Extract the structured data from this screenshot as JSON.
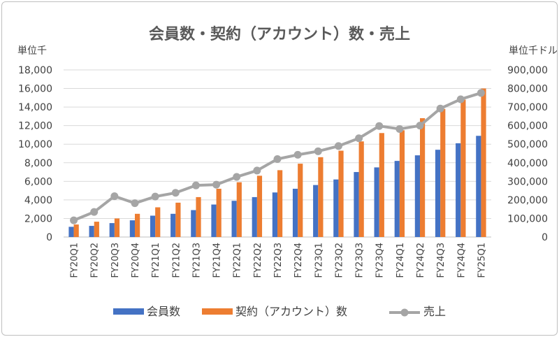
{
  "chart_data": {
    "type": "bar",
    "title": "会員数・契約（アカウント）数・売上",
    "y_left_unit": "単位千",
    "y_right_unit": "単位千ドル",
    "ylim_left": [
      0,
      18000
    ],
    "ylim_right": [
      0,
      900000
    ],
    "y_left_ticks": [
      "18,000",
      "16,000",
      "14,000",
      "12,000",
      "10,000",
      "8,000",
      "6,000",
      "4,000",
      "2,000",
      "0"
    ],
    "y_right_ticks": [
      "900,000",
      "800,000",
      "700,000",
      "600,000",
      "500,000",
      "400,000",
      "300,000",
      "200,000",
      "100,000",
      "0"
    ],
    "categories": [
      "FY20Q1",
      "FY20Q2",
      "FY20Q3",
      "FY20Q4",
      "FY21Q1",
      "FY21Q2",
      "FY21Q3",
      "FY21Q4",
      "FY22Q1",
      "FY22Q2",
      "FY22Q3",
      "FY22Q4",
      "FY23Q1",
      "FY23Q2",
      "FY23Q3",
      "FY23Q4",
      "FY24Q1",
      "FY24Q2",
      "FY24Q3",
      "FY24Q4",
      "FY25Q1"
    ],
    "series": [
      {
        "name": "会員数",
        "type": "bar",
        "axis": "left",
        "color": "#4472C4",
        "values": [
          1100,
          1200,
          1500,
          1800,
          2300,
          2500,
          2900,
          3500,
          3900,
          4300,
          4800,
          5200,
          5600,
          6200,
          7000,
          7500,
          8200,
          8800,
          9400,
          10100,
          10900
        ]
      },
      {
        "name": "契約（アカウント）数",
        "type": "bar",
        "axis": "left",
        "color": "#ED7D31",
        "values": [
          1350,
          1650,
          2000,
          2500,
          3200,
          3700,
          4300,
          5200,
          5900,
          6600,
          7200,
          7900,
          8600,
          9300,
          10300,
          11200,
          11500,
          12800,
          13800,
          14800,
          16000
        ]
      },
      {
        "name": "売上",
        "type": "line",
        "axis": "right",
        "color": "#A5A5A5",
        "values": [
          90000,
          135000,
          220000,
          182000,
          218000,
          238000,
          278000,
          282000,
          324000,
          358000,
          420000,
          443000,
          462000,
          490000,
          532000,
          598000,
          582000,
          600000,
          692000,
          742000,
          776000
        ]
      }
    ]
  }
}
